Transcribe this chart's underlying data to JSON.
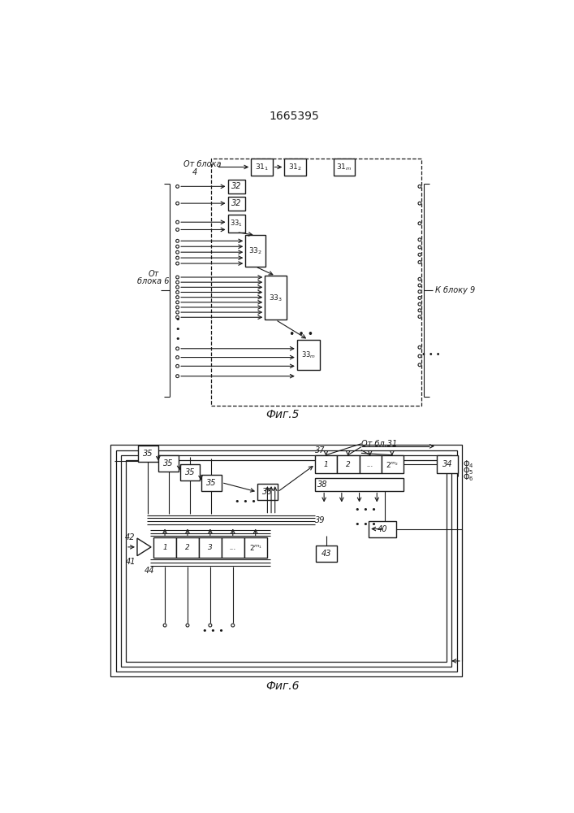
{
  "title": "1665395",
  "fig5_label": "Фиг.5",
  "fig6_label": "Фиг.6",
  "bg_color": "#ffffff",
  "lc": "#1a1a1a",
  "tc": "#1a1a1a"
}
